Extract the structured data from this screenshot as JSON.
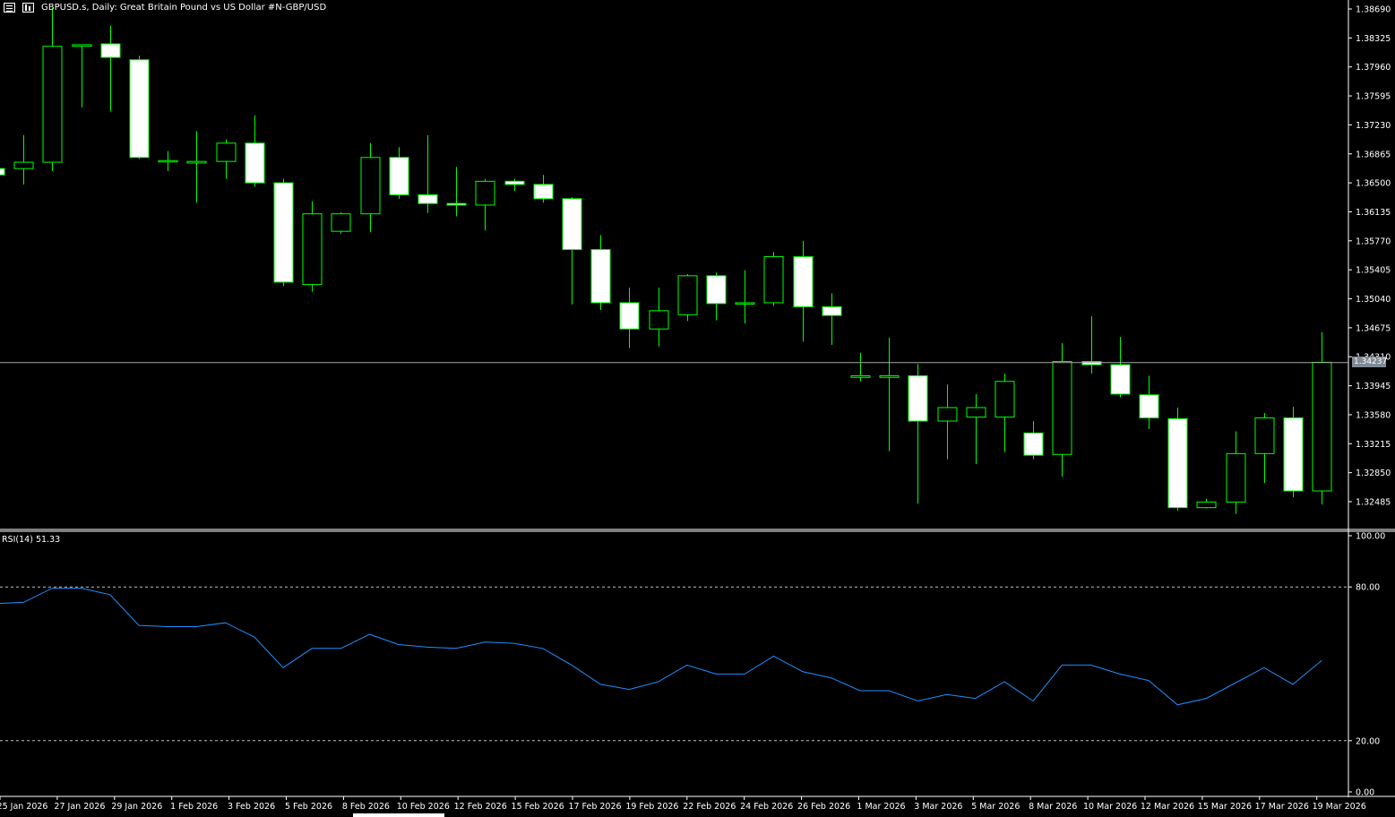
{
  "header": {
    "title": "GBPUSD.s, Daily:  Great Britain Pound vs US Dollar #N-GBP/USD",
    "icons": [
      "chart-menu-icon",
      "chart-type-icon"
    ]
  },
  "colors": {
    "background": "#000000",
    "bull": "#00ff00",
    "bear_body": "#ffffff",
    "rsi_line": "#1e90ff",
    "grid": "#c0c0c0",
    "axis": "#ffffff",
    "bid_line": "#a9a9a9",
    "price_tag_bg": "#7f8a96"
  },
  "price_axis": {
    "ticks": [
      "1.38690",
      "1.38325",
      "1.37960",
      "1.37595",
      "1.37230",
      "1.36865",
      "1.36500",
      "1.36135",
      "1.35770",
      "1.35405",
      "1.35040",
      "1.34675",
      "1.34310",
      "1.33945",
      "1.33580",
      "1.33215",
      "1.32850",
      "1.32485"
    ],
    "current_price": "1.34237"
  },
  "rsi": {
    "label": "RSI(14) 51.33",
    "ticks": [
      "100.00",
      "80.00",
      "20.00",
      "0.00"
    ],
    "levels": [
      80,
      20
    ]
  },
  "time_axis": {
    "labels": [
      "25 Jan 2026",
      "27 Jan 2026",
      "29 Jan 2026",
      "1 Feb 2026",
      "3 Feb 2026",
      "5 Feb 2026",
      "8 Feb 2026",
      "10 Feb 2026",
      "12 Feb 2026",
      "15 Feb 2026",
      "17 Feb 2026",
      "19 Feb 2026",
      "22 Feb 2026",
      "24 Feb 2026",
      "26 Feb 2026",
      "1 Mar 2026",
      "3 Mar 2026",
      "5 Mar 2026",
      "8 Mar 2026",
      "10 Mar 2026",
      "12 Mar 2026",
      "15 Mar 2026",
      "17 Mar 2026",
      "19 Mar 2026"
    ]
  },
  "chart_data": [
    {
      "type": "candlestick",
      "series_name": "GBPUSD.s",
      "ylim": [
        1.323,
        1.387
      ],
      "candles": [
        {
          "o": 1.3668,
          "h": 1.3672,
          "l": 1.366,
          "c": 1.366
        },
        {
          "o": 1.3668,
          "h": 1.371,
          "l": 1.3648,
          "c": 1.3676
        },
        {
          "o": 1.3676,
          "h": 1.387,
          "l": 1.3665,
          "c": 1.3822
        },
        {
          "o": 1.3822,
          "h": 1.3824,
          "l": 1.3745,
          "c": 1.3824
        },
        {
          "o": 1.3825,
          "h": 1.3848,
          "l": 1.374,
          "c": 1.3808
        },
        {
          "o": 1.3805,
          "h": 1.381,
          "l": 1.368,
          "c": 1.3682
        },
        {
          "o": 1.3678,
          "h": 1.369,
          "l": 1.3665,
          "c": 1.3678
        },
        {
          "o": 1.3675,
          "h": 1.3715,
          "l": 1.3625,
          "c": 1.3677
        },
        {
          "o": 1.3677,
          "h": 1.3705,
          "l": 1.3655,
          "c": 1.37
        },
        {
          "o": 1.37,
          "h": 1.3735,
          "l": 1.3645,
          "c": 1.365
        },
        {
          "o": 1.365,
          "h": 1.3655,
          "l": 1.352,
          "c": 1.3525
        },
        {
          "o": 1.3522,
          "h": 1.3627,
          "l": 1.3513,
          "c": 1.3611
        },
        {
          "o": 1.3589,
          "h": 1.3613,
          "l": 1.3586,
          "c": 1.3611
        },
        {
          "o": 1.3611,
          "h": 1.37,
          "l": 1.3588,
          "c": 1.3682
        },
        {
          "o": 1.3682,
          "h": 1.3695,
          "l": 1.363,
          "c": 1.3635
        },
        {
          "o": 1.3635,
          "h": 1.371,
          "l": 1.3612,
          "c": 1.3624
        },
        {
          "o": 1.3624,
          "h": 1.367,
          "l": 1.3608,
          "c": 1.3622
        },
        {
          "o": 1.3622,
          "h": 1.3655,
          "l": 1.359,
          "c": 1.3652
        },
        {
          "o": 1.3652,
          "h": 1.3655,
          "l": 1.364,
          "c": 1.3648
        },
        {
          "o": 1.3648,
          "h": 1.366,
          "l": 1.3625,
          "c": 1.363
        },
        {
          "o": 1.363,
          "h": 1.3632,
          "l": 1.3497,
          "c": 1.3566
        },
        {
          "o": 1.3566,
          "h": 1.3584,
          "l": 1.349,
          "c": 1.3499
        },
        {
          "o": 1.3499,
          "h": 1.3518,
          "l": 1.3442,
          "c": 1.3466
        },
        {
          "o": 1.3466,
          "h": 1.3518,
          "l": 1.3444,
          "c": 1.3489
        },
        {
          "o": 1.3484,
          "h": 1.3535,
          "l": 1.3476,
          "c": 1.3533
        },
        {
          "o": 1.3533,
          "h": 1.3537,
          "l": 1.3477,
          "c": 1.3498
        },
        {
          "o": 1.3498,
          "h": 1.354,
          "l": 1.3473,
          "c": 1.3499
        },
        {
          "o": 1.3499,
          "h": 1.3563,
          "l": 1.3495,
          "c": 1.3557
        },
        {
          "o": 1.3557,
          "h": 1.3577,
          "l": 1.345,
          "c": 1.3494
        },
        {
          "o": 1.3494,
          "h": 1.3511,
          "l": 1.3446,
          "c": 1.3483
        },
        {
          "o": 1.3405,
          "h": 1.3436,
          "l": 1.34,
          "c": 1.3407
        },
        {
          "o": 1.3405,
          "h": 1.3455,
          "l": 1.3312,
          "c": 1.3407
        },
        {
          "o": 1.3407,
          "h": 1.3422,
          "l": 1.3246,
          "c": 1.335
        },
        {
          "o": 1.335,
          "h": 1.3396,
          "l": 1.3302,
          "c": 1.3367
        },
        {
          "o": 1.3355,
          "h": 1.3384,
          "l": 1.3296,
          "c": 1.3367
        },
        {
          "o": 1.3355,
          "h": 1.341,
          "l": 1.3311,
          "c": 1.34
        },
        {
          "o": 1.3335,
          "h": 1.335,
          "l": 1.3302,
          "c": 1.3307
        },
        {
          "o": 1.3308,
          "h": 1.3448,
          "l": 1.328,
          "c": 1.3425
        },
        {
          "o": 1.3425,
          "h": 1.3482,
          "l": 1.341,
          "c": 1.3421
        },
        {
          "o": 1.3421,
          "h": 1.3456,
          "l": 1.338,
          "c": 1.3384
        },
        {
          "o": 1.3383,
          "h": 1.3407,
          "l": 1.334,
          "c": 1.3354
        },
        {
          "o": 1.3353,
          "h": 1.3367,
          "l": 1.3237,
          "c": 1.3241
        },
        {
          "o": 1.3241,
          "h": 1.3252,
          "l": 1.324,
          "c": 1.3248
        },
        {
          "o": 1.3248,
          "h": 1.3337,
          "l": 1.3233,
          "c": 1.3309
        },
        {
          "o": 1.3309,
          "h": 1.336,
          "l": 1.3272,
          "c": 1.3354
        },
        {
          "o": 1.3354,
          "h": 1.3368,
          "l": 1.3254,
          "c": 1.3262
        },
        {
          "o": 1.3262,
          "h": 1.3462,
          "l": 1.3245,
          "c": 1.3424
        }
      ]
    },
    {
      "type": "line",
      "series_name": "RSI(14)",
      "ylim": [
        0,
        100
      ],
      "values": [
        73.5,
        74,
        79.5,
        79.5,
        77,
        65,
        64.5,
        64.5,
        66,
        60.5,
        48.5,
        56,
        56,
        61.5,
        57.5,
        56.5,
        56,
        58.5,
        58,
        56,
        49.5,
        42,
        40,
        43,
        49.5,
        46,
        46,
        53,
        47,
        44.5,
        39.5,
        39.5,
        35.5,
        38,
        36.5,
        43,
        35.5,
        49.5,
        49.5,
        46,
        43.5,
        34,
        36.5,
        42.5,
        48.5,
        42,
        51.33
      ]
    }
  ]
}
